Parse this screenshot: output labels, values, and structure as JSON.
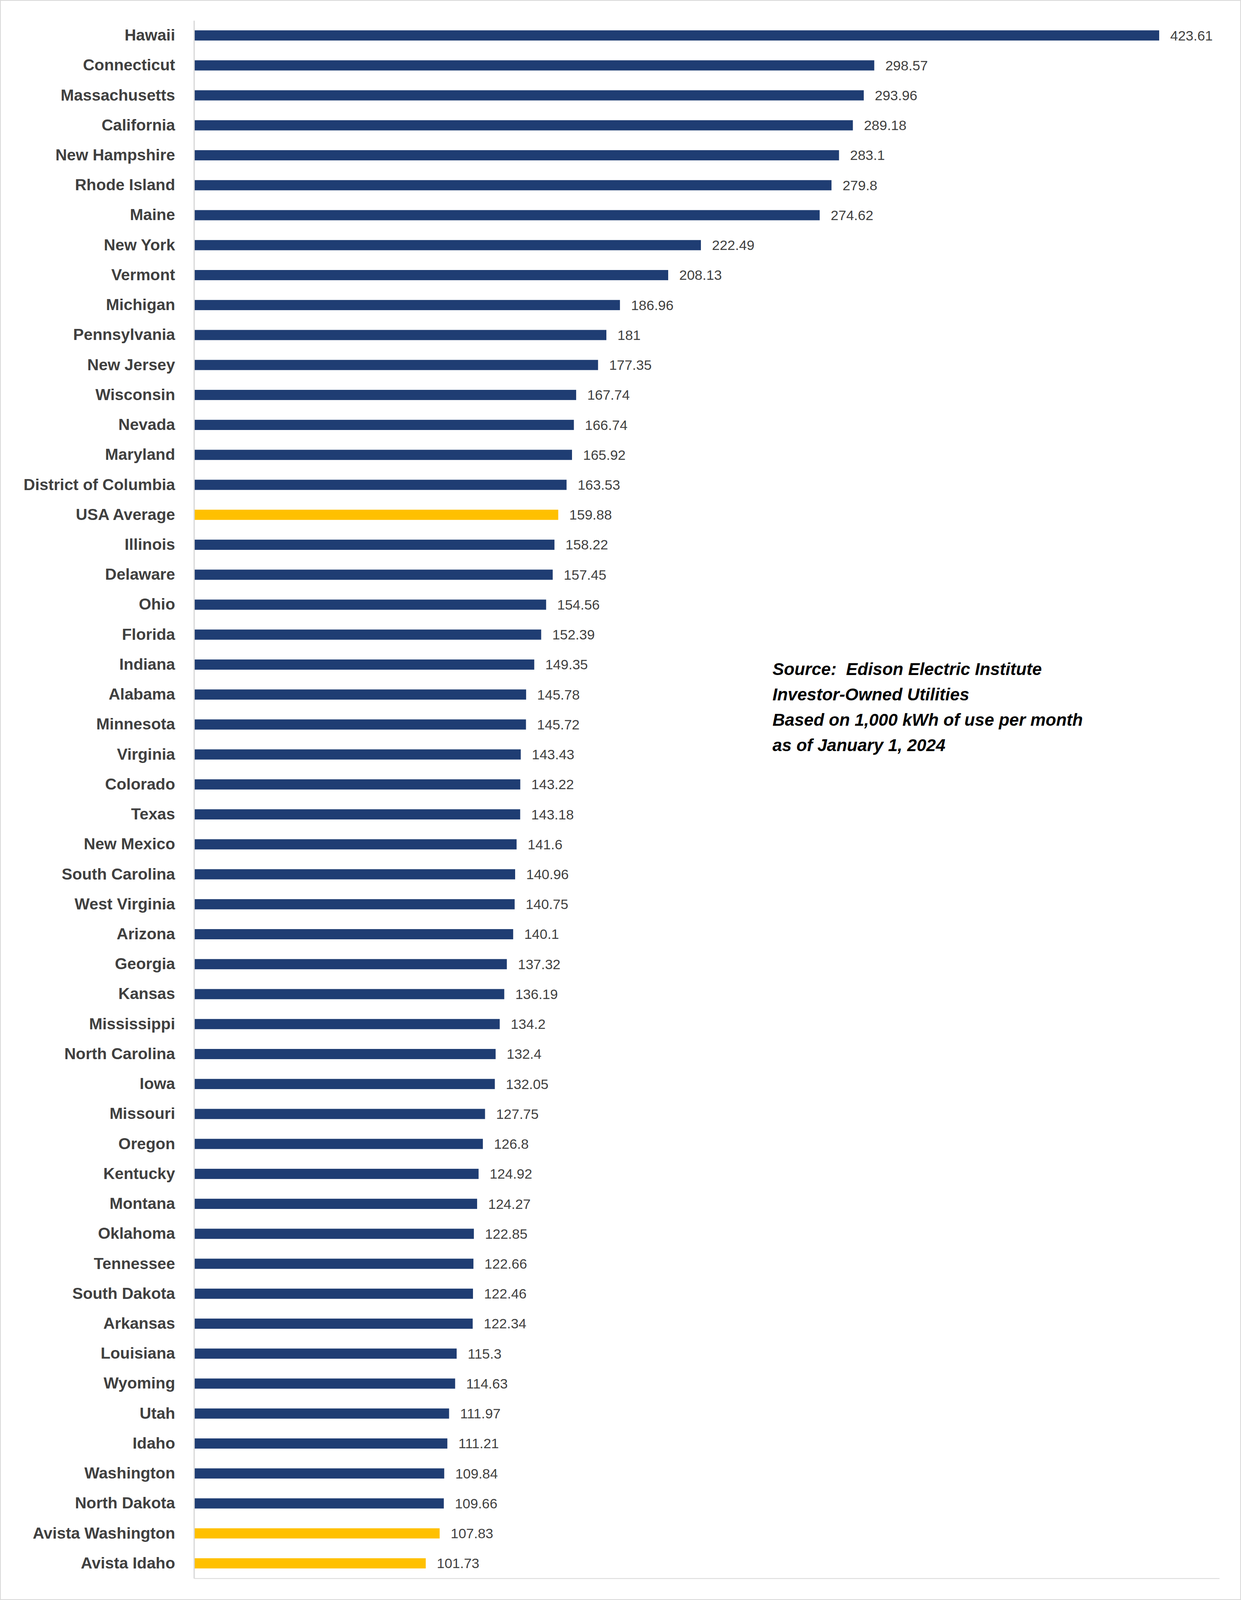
{
  "chart_data": {
    "type": "bar",
    "orientation": "horizontal",
    "categories": [
      "Hawaii",
      "Connecticut",
      "Massachusetts",
      "California",
      "New Hampshire",
      "Rhode Island",
      "Maine",
      "New York",
      "Vermont",
      "Michigan",
      "Pennsylvania",
      "New Jersey",
      "Wisconsin",
      "Nevada",
      "Maryland",
      "District of Columbia",
      "USA Average",
      "Illinois",
      "Delaware",
      "Ohio",
      "Florida",
      "Indiana",
      "Alabama",
      "Minnesota",
      "Virginia",
      "Colorado",
      "Texas",
      "New Mexico",
      "South Carolina",
      "West Virginia",
      "Arizona",
      "Georgia",
      "Kansas",
      "Mississippi",
      "North Carolina",
      "Iowa",
      "Missouri",
      "Oregon",
      "Kentucky",
      "Montana",
      "Oklahoma",
      "Tennessee",
      "South Dakota",
      "Arkansas",
      "Louisiana",
      "Wyoming",
      "Utah",
      "Idaho",
      "Washington",
      "North Dakota",
      "Avista Washington",
      "Avista Idaho"
    ],
    "values": [
      423.61,
      298.57,
      293.96,
      289.18,
      283.1,
      279.8,
      274.62,
      222.49,
      208.13,
      186.96,
      181,
      177.35,
      167.74,
      166.74,
      165.92,
      163.53,
      159.88,
      158.22,
      157.45,
      154.56,
      152.39,
      149.35,
      145.78,
      145.72,
      143.43,
      143.22,
      143.18,
      141.6,
      140.96,
      140.75,
      140.1,
      137.32,
      136.19,
      134.2,
      132.4,
      132.05,
      127.75,
      126.8,
      124.92,
      124.27,
      122.85,
      122.66,
      122.46,
      122.34,
      115.3,
      114.63,
      111.97,
      111.21,
      109.84,
      109.66,
      107.83,
      101.73
    ],
    "colors": [
      "#1f3d73",
      "#1f3d73",
      "#1f3d73",
      "#1f3d73",
      "#1f3d73",
      "#1f3d73",
      "#1f3d73",
      "#1f3d73",
      "#1f3d73",
      "#1f3d73",
      "#1f3d73",
      "#1f3d73",
      "#1f3d73",
      "#1f3d73",
      "#1f3d73",
      "#1f3d73",
      "#ffc000",
      "#1f3d73",
      "#1f3d73",
      "#1f3d73",
      "#1f3d73",
      "#1f3d73",
      "#1f3d73",
      "#1f3d73",
      "#1f3d73",
      "#1f3d73",
      "#1f3d73",
      "#1f3d73",
      "#1f3d73",
      "#1f3d73",
      "#1f3d73",
      "#1f3d73",
      "#1f3d73",
      "#1f3d73",
      "#1f3d73",
      "#1f3d73",
      "#1f3d73",
      "#1f3d73",
      "#1f3d73",
      "#1f3d73",
      "#1f3d73",
      "#1f3d73",
      "#1f3d73",
      "#1f3d73",
      "#1f3d73",
      "#1f3d73",
      "#1f3d73",
      "#1f3d73",
      "#1f3d73",
      "#1f3d73",
      "#ffc000",
      "#ffc000"
    ],
    "xlim": [
      0,
      450
    ],
    "data_labels": true,
    "tick_labels": "y",
    "grid": false,
    "annotations": [
      "Source:  Edison Electric Institute",
      "Investor-Owned Utilities",
      "Based on 1,000 kWh of use per month",
      "as of January 1, 2024"
    ]
  }
}
